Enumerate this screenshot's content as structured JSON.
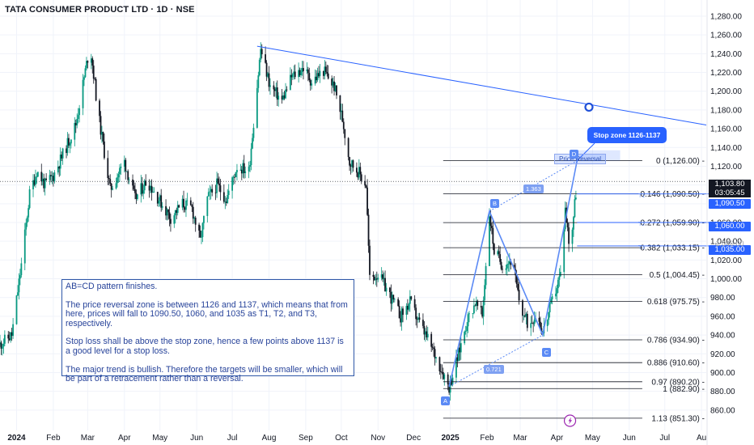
{
  "title": "TATA CONSUMER PRODUCT LTD · 1D · NSE",
  "chart_data": {
    "type": "candlestick",
    "x_range": [
      "2023-12-18",
      "2025-08-05"
    ],
    "ylim": [
      850,
      1290
    ],
    "y_ticks": [
      860,
      880,
      900,
      920,
      940,
      960,
      980,
      1000,
      1020,
      1040,
      1060,
      1080,
      1100,
      1120,
      1140,
      1160,
      1180,
      1200,
      1220,
      1240,
      1260,
      1280
    ],
    "y_tick_labels": [
      "860.00",
      "880.00",
      "900.00",
      "920.00",
      "940.00",
      "960.00",
      "980.00",
      "1,000.00",
      "1,020.00",
      "1,040.00",
      "1,060.00",
      "1,080.00",
      "1,100.00",
      "1,120.00",
      "1,140.00",
      "1,160.00",
      "1,180.00",
      "1,200.00",
      "1,220.00",
      "1,240.00",
      "1,260.00",
      "1,280.00"
    ],
    "x_ticks": [
      {
        "date": "2024-01-01",
        "label": "2024",
        "bold": true
      },
      {
        "date": "2024-02-01",
        "label": "Feb"
      },
      {
        "date": "2024-03-01",
        "label": "Mar"
      },
      {
        "date": "2024-04-01",
        "label": "Apr"
      },
      {
        "date": "2024-05-01",
        "label": "May"
      },
      {
        "date": "2024-06-01",
        "label": "Jun"
      },
      {
        "date": "2024-07-01",
        "label": "Jul"
      },
      {
        "date": "2024-08-01",
        "label": "Aug"
      },
      {
        "date": "2024-09-01",
        "label": "Sep"
      },
      {
        "date": "2024-10-01",
        "label": "Oct"
      },
      {
        "date": "2024-11-01",
        "label": "Nov"
      },
      {
        "date": "2024-12-01",
        "label": "Dec"
      },
      {
        "date": "2025-01-01",
        "label": "2025",
        "bold": true
      },
      {
        "date": "2025-02-01",
        "label": "Feb"
      },
      {
        "date": "2025-03-01",
        "label": "Mar"
      },
      {
        "date": "2025-04-01",
        "label": "Apr"
      },
      {
        "date": "2025-05-01",
        "label": "May"
      },
      {
        "date": "2025-06-01",
        "label": "Jun"
      },
      {
        "date": "2025-07-01",
        "label": "Jul"
      },
      {
        "date": "2025-08-01",
        "label": "Au"
      }
    ],
    "price_waypoints": [
      [
        "2023-12-18",
        930
      ],
      [
        "2023-12-28",
        940
      ],
      [
        "2024-01-05",
        1015
      ],
      [
        "2024-01-12",
        1090
      ],
      [
        "2024-01-18",
        1115
      ],
      [
        "2024-01-25",
        1100
      ],
      [
        "2024-02-01",
        1110
      ],
      [
        "2024-02-10",
        1135
      ],
      [
        "2024-02-20",
        1165
      ],
      [
        "2024-03-03",
        1250
      ],
      [
        "2024-03-10",
        1175
      ],
      [
        "2024-03-20",
        1095
      ],
      [
        "2024-04-01",
        1125
      ],
      [
        "2024-04-10",
        1085
      ],
      [
        "2024-04-20",
        1105
      ],
      [
        "2024-04-30",
        1085
      ],
      [
        "2024-05-10",
        1065
      ],
      [
        "2024-05-20",
        1080
      ],
      [
        "2024-05-28",
        1075
      ],
      [
        "2024-06-04",
        1040
      ],
      [
        "2024-06-10",
        1085
      ],
      [
        "2024-06-18",
        1100
      ],
      [
        "2024-06-26",
        1085
      ],
      [
        "2024-07-05",
        1120
      ],
      [
        "2024-07-15",
        1115
      ],
      [
        "2024-07-25",
        1245
      ],
      [
        "2024-08-02",
        1205
      ],
      [
        "2024-08-12",
        1190
      ],
      [
        "2024-08-20",
        1215
      ],
      [
        "2024-08-30",
        1225
      ],
      [
        "2024-09-06",
        1210
      ],
      [
        "2024-09-16",
        1222
      ],
      [
        "2024-09-25",
        1205
      ],
      [
        "2024-10-02",
        1170
      ],
      [
        "2024-10-08",
        1125
      ],
      [
        "2024-10-15",
        1115
      ],
      [
        "2024-10-22",
        1100
      ],
      [
        "2024-10-25",
        1000
      ],
      [
        "2024-11-01",
        1005
      ],
      [
        "2024-11-10",
        985
      ],
      [
        "2024-11-20",
        960
      ],
      [
        "2024-11-28",
        975
      ],
      [
        "2024-12-05",
        955
      ],
      [
        "2024-12-15",
        930
      ],
      [
        "2024-12-24",
        905
      ],
      [
        "2024-12-31",
        885
      ],
      [
        "2025-01-07",
        915
      ],
      [
        "2025-01-15",
        955
      ],
      [
        "2025-01-22",
        975
      ],
      [
        "2025-01-28",
        960
      ],
      [
        "2025-02-03",
        1070
      ],
      [
        "2025-02-07",
        1030
      ],
      [
        "2025-02-14",
        1015
      ],
      [
        "2025-02-22",
        1020
      ],
      [
        "2025-03-01",
        970
      ],
      [
        "2025-03-08",
        950
      ],
      [
        "2025-03-15",
        965
      ],
      [
        "2025-03-20",
        942
      ],
      [
        "2025-03-27",
        972
      ],
      [
        "2025-04-04",
        1005
      ],
      [
        "2025-04-08",
        1075
      ],
      [
        "2025-04-12",
        1030
      ],
      [
        "2025-04-16",
        1080
      ],
      [
        "2025-04-18",
        1104
      ]
    ],
    "current_price": {
      "value": 1103.8,
      "label": "1,103.80",
      "countdown": "03:05:45"
    },
    "fib_levels": [
      {
        "ratio": "0",
        "price": 1126.0,
        "label": "0 (1,126.00)"
      },
      {
        "ratio": "0.146",
        "price": 1090.5,
        "label": "0.146 (1,090.50)"
      },
      {
        "ratio": "0.272",
        "price": 1059.9,
        "label": "0.272 (1,059.90)"
      },
      {
        "ratio": "0.382",
        "price": 1033.15,
        "label": "0.382 (1,033.15)"
      },
      {
        "ratio": "0.5",
        "price": 1004.45,
        "label": "0.5 (1,004.45)"
      },
      {
        "ratio": "0.618",
        "price": 975.75,
        "label": "0.618 (975.75)"
      },
      {
        "ratio": "0.786",
        "price": 934.9,
        "label": "0.786 (934.90)"
      },
      {
        "ratio": "0.886",
        "price": 910.6,
        "label": "0.886 (910.60)"
      },
      {
        "ratio": "0.97",
        "price": 890.2,
        "label": "0.97 (890.20)"
      },
      {
        "ratio": "1",
        "price": 882.9,
        "label": "1 (882.90)"
      },
      {
        "ratio": "1.13",
        "price": 851.3,
        "label": "1.13 (851.30)"
      }
    ],
    "abcd_pattern": [
      {
        "label": "A",
        "date": "2024-12-31",
        "price": 885
      },
      {
        "label": "B",
        "date": "2025-02-03",
        "price": 1072
      },
      {
        "label": "C",
        "date": "2025-03-20",
        "price": 940
      },
      {
        "label": "D",
        "date": "2025-04-18",
        "price": 1126
      }
    ],
    "ratios": [
      {
        "label": "1.363"
      },
      {
        "label": "0.721"
      }
    ],
    "trendline": {
      "start": [
        "2024-07-22",
        1248
      ],
      "end": [
        "2025-08-05",
        1164
      ],
      "marker": [
        "2025-04-28",
        1183
      ]
    },
    "targets": [
      {
        "label": "T1",
        "price": 1090.5,
        "tag": "1,090.50"
      },
      {
        "label": "T2",
        "price": 1060.0,
        "tag": "1,060.00"
      },
      {
        "label": "T3",
        "price": 1035.0,
        "tag": "1,035.00"
      }
    ],
    "ghost_axis_label": "1,040.00",
    "stop_zone_label": "Stop zone 1126-1137",
    "reversal_zone_label": "Price Reversal"
  },
  "note": {
    "lines": [
      "AB=CD pattern finishes.",
      "The price reversal zone is between 1126 and 1137, which means that from here, prices will fall to 1090.50, 1060, and 1035 as T1, T2, and T3, respectively.",
      "Stop loss shall be above the stop zone, hence a few points above 1137 is a good level for a stop loss.",
      "The major trend is bullish. Therefore the targets will be smaller, which will be part of a retracement rather than a reversal."
    ]
  },
  "colors": {
    "up": "#089981",
    "down": "#131722",
    "accent": "#2962ff",
    "pattern": "#5b8af5",
    "grid": "#f0f3fa",
    "axis_text": "#131722"
  }
}
